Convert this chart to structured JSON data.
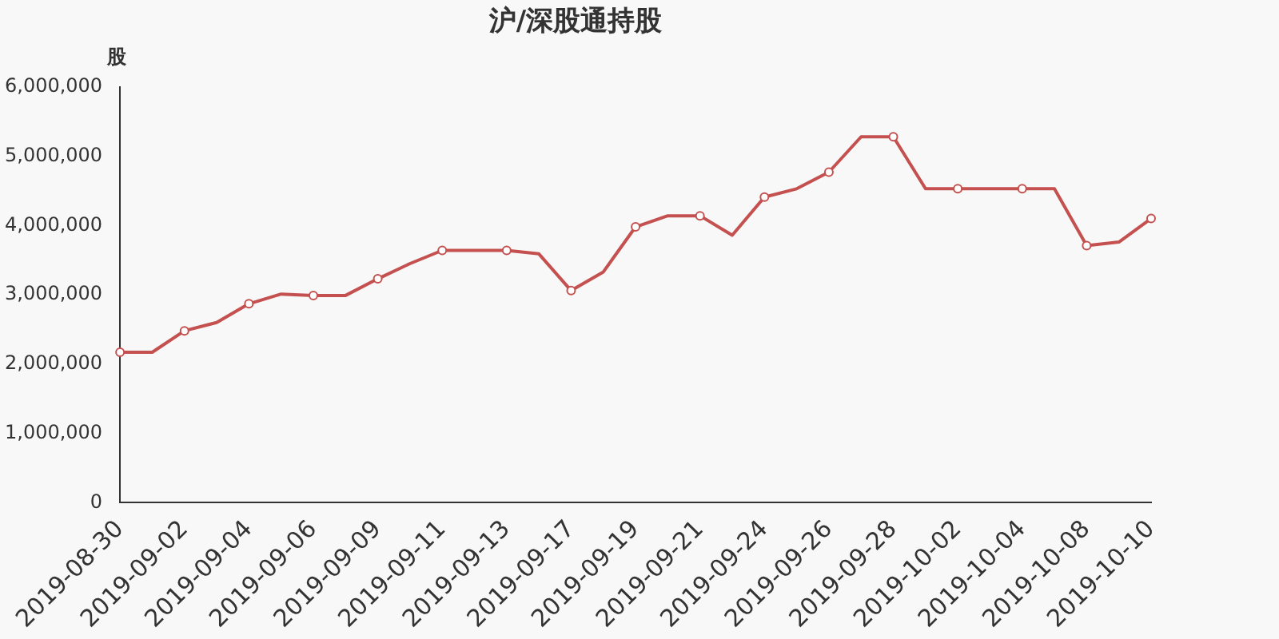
{
  "chart_data": {
    "type": "line",
    "title": "沪/深股通持股",
    "ylabel": "股",
    "categories": [
      "2019-08-30",
      null,
      "2019-09-02",
      null,
      "2019-09-04",
      null,
      "2019-09-06",
      null,
      "2019-09-09",
      null,
      "2019-09-11",
      null,
      "2019-09-13",
      null,
      "2019-09-17",
      null,
      "2019-09-19",
      null,
      "2019-09-21",
      null,
      "2019-09-24",
      null,
      "2019-09-26",
      null,
      "2019-09-28",
      null,
      "2019-10-02",
      null,
      "2019-10-04",
      null,
      "2019-10-08",
      null,
      "2019-10-10"
    ],
    "series": [
      {
        "color": "#c4504f",
        "values": [
          2170000,
          2170000,
          2480000,
          2600000,
          2870000,
          3010000,
          2990000,
          2990000,
          3230000,
          3450000,
          3640000,
          3640000,
          3640000,
          3590000,
          3060000,
          3330000,
          3980000,
          4140000,
          4140000,
          3860000,
          4410000,
          4530000,
          4770000,
          5280000,
          5280000,
          4530000,
          4530000,
          4530000,
          4530000,
          4530000,
          3710000,
          3760000,
          4100000
        ]
      }
    ],
    "ylim": [
      0,
      6000000
    ],
    "yticks": [
      {
        "value": 0,
        "label": "0"
      },
      {
        "value": 1000000,
        "label": "1,000,000"
      },
      {
        "value": 2000000,
        "label": "2,000,000"
      },
      {
        "value": 3000000,
        "label": "3,000,000"
      },
      {
        "value": 4000000,
        "label": "4,000,000"
      },
      {
        "value": 5000000,
        "label": "5,000,000"
      },
      {
        "value": 6000000,
        "label": "6,000,000"
      }
    ],
    "grid": false,
    "legend": false,
    "marker": "circle",
    "line_style": "solid"
  }
}
